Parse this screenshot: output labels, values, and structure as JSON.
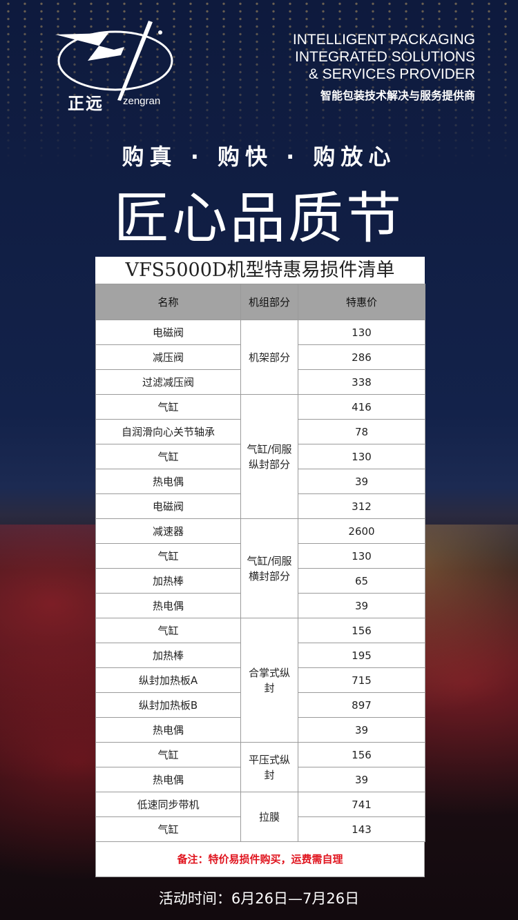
{
  "brand": {
    "name_cn": "正远",
    "name_en": "zengran"
  },
  "tagline": {
    "lines": [
      "INTELLIGENT PACKAGING",
      "INTEGRATED SOLUTIONS",
      "& SERVICES PROVIDER"
    ],
    "cn": "智能包装技术解决与服务提供商"
  },
  "slogan": "购真 · 购快 · 购放心",
  "headline": "匠心品质节",
  "sheet": {
    "title": "VFS5000D机型特惠易损件清单",
    "headers": [
      "名称",
      "机组部分",
      "特惠价"
    ],
    "groups": [
      {
        "section": "机架部分",
        "items": [
          [
            "电磁阀",
            "130"
          ],
          [
            "减压阀",
            "286"
          ],
          [
            "过滤减压阀",
            "338"
          ]
        ]
      },
      {
        "section": "气缸/伺服纵封部分",
        "items": [
          [
            "气缸",
            "416"
          ],
          [
            "自润滑向心关节轴承",
            "78"
          ],
          [
            "气缸",
            "130"
          ],
          [
            "热电偶",
            "39"
          ],
          [
            "电磁阀",
            "312"
          ]
        ]
      },
      {
        "section": "气缸/伺服横封部分",
        "items": [
          [
            "减速器",
            "2600"
          ],
          [
            "气缸",
            "130"
          ],
          [
            "加热棒",
            "65"
          ],
          [
            "热电偶",
            "39"
          ]
        ]
      },
      {
        "section": "合掌式纵封",
        "items": [
          [
            "气缸",
            "156"
          ],
          [
            "加热棒",
            "195"
          ],
          [
            "纵封加热板A",
            "715"
          ],
          [
            "纵封加热板B",
            "897"
          ],
          [
            "热电偶",
            "39"
          ]
        ]
      },
      {
        "section": "平压式纵封",
        "items": [
          [
            "气缸",
            "156"
          ],
          [
            "热电偶",
            "39"
          ]
        ]
      },
      {
        "section": "拉膜",
        "items": [
          [
            "低速同步带机",
            "741"
          ],
          [
            "气缸",
            "143"
          ]
        ]
      }
    ],
    "note": "备注：特价易损件购买，运费需自理"
  },
  "footer": "活动时间：6月26日—7月26日",
  "colors": {
    "background": "#13224a",
    "note": "#e0141e",
    "header": "#a3a3a3"
  }
}
